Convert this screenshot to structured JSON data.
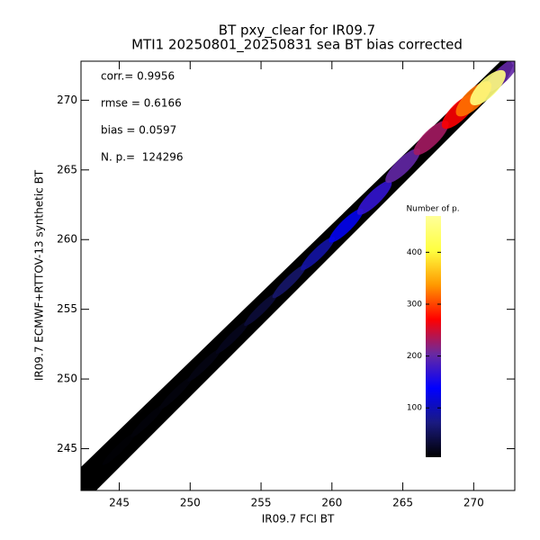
{
  "chart_data": {
    "type": "density",
    "title": "BT pxy_clear for IR09.7",
    "subtitle": "MTI1 20250801_20250831 sea BT bias corrected",
    "xlabel": "IR09.7 FCI BT",
    "ylabel": "IR09.7 ECMWF+RTTOV-13 synthetic BT",
    "annotations": [
      "corr.= 0.9956",
      "rmse = 0.6166",
      "bias = 0.0597",
      "N. p.=  124296"
    ],
    "x": [
      243,
      245,
      247,
      249,
      251,
      253,
      255,
      257,
      259,
      261,
      263,
      265,
      267,
      269,
      270,
      271,
      272
    ],
    "y": [
      243,
      245,
      247,
      249,
      251,
      253,
      255,
      257,
      259,
      261,
      263,
      265.3,
      267.3,
      269.2,
      270.1,
      270.9,
      271.8
    ],
    "counts": [
      5,
      8,
      10,
      12,
      15,
      20,
      35,
      60,
      90,
      130,
      170,
      200,
      230,
      270,
      320,
      450,
      200
    ],
    "xlim": [
      242.3,
      272.9
    ],
    "ylim": [
      242,
      272.8
    ],
    "xticks": [
      245,
      250,
      255,
      260,
      265,
      270
    ],
    "yticks": [
      245,
      250,
      255,
      260,
      265,
      270
    ],
    "colorbar": {
      "label": "Number of p.",
      "lim": [
        5,
        470
      ],
      "ticks": [
        100,
        200,
        300,
        400
      ]
    },
    "colormap": [
      "#000000",
      "#1a1a80",
      "#0000ff",
      "#6a2aa0",
      "#ff0000",
      "#ff9900",
      "#ffff40",
      "#ffff99"
    ]
  }
}
